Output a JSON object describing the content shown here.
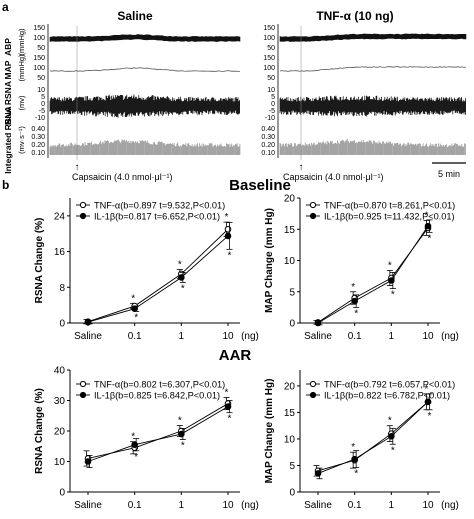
{
  "panel_labels": {
    "a": "a",
    "b": "b"
  },
  "traces": {
    "left_title": "Saline",
    "right_title": "TNF-α (10 ng)",
    "row_labels": [
      "ABP",
      "MAP",
      "Raw RSNA",
      "Integrated RSNA"
    ],
    "row_units": [
      "(mmHg)",
      "(mmHg)",
      "(mv)",
      "(mv·s⁻¹)"
    ],
    "abp_ticks": [
      "150",
      "100",
      "50"
    ],
    "map_ticks": [
      "150",
      "100",
      "50"
    ],
    "raw_ticks": [
      "10",
      "5",
      "0",
      "-5",
      "-10"
    ],
    "int_ticks": [
      "0.40",
      "0.30",
      "0.20",
      "0.10"
    ],
    "event_marker": "↑",
    "event_label": "Capsaicin (4.0 nmol·μl⁻¹)",
    "scale_bar": "5 min"
  },
  "section_titles": {
    "baseline": "Baseline",
    "aar": "AAR"
  },
  "chart_data": [
    {
      "type": "line",
      "group": "Baseline",
      "categories": [
        "Saline",
        "0.1",
        "1",
        "10"
      ],
      "xunit": "(ng)",
      "ylabel": "RSNA Change (%)",
      "yticks": [
        "0",
        "8",
        "16",
        "24"
      ],
      "ylim": [
        0,
        28
      ],
      "series": [
        {
          "name": "TNF-α(b=0.897 t=9.532,P<0.01)",
          "marker": "open",
          "values": [
            0.3,
            3.8,
            11.0,
            21.0
          ],
          "errors": [
            0.5,
            0.6,
            1.0,
            1.6
          ],
          "stars": [
            false,
            true,
            true,
            true
          ]
        },
        {
          "name": "IL-1β(b=0.817 t=6.652,P<0.01)",
          "marker": "filled",
          "values": [
            0.2,
            3.2,
            10.2,
            19.5
          ],
          "errors": [
            0.4,
            0.6,
            1.1,
            3.0
          ],
          "stars": [
            false,
            true,
            true,
            true
          ]
        }
      ]
    },
    {
      "type": "line",
      "group": "Baseline",
      "categories": [
        "Saline",
        "0.1",
        "1",
        "10"
      ],
      "xunit": "(ng)",
      "ylabel": "MAP Change (mm Hg)",
      "yticks": [
        "0",
        "5",
        "10",
        "15",
        "20"
      ],
      "ylim": [
        0,
        20
      ],
      "series": [
        {
          "name": "TNF-α(b=0.870 t=8.261,P<0.01)",
          "marker": "open",
          "values": [
            0.1,
            4.0,
            7.2,
            15.2
          ],
          "errors": [
            0.3,
            1.0,
            1.2,
            1.2
          ],
          "stars": [
            false,
            true,
            true,
            true
          ]
        },
        {
          "name": "IL-1β(b=0.925 t=11.432,P<0.01)",
          "marker": "filled",
          "values": [
            0.0,
            3.5,
            6.8,
            15.5
          ],
          "errors": [
            0.3,
            1.0,
            1.3,
            1.0
          ],
          "stars": [
            false,
            true,
            true,
            true
          ]
        }
      ]
    },
    {
      "type": "line",
      "group": "AAR",
      "categories": [
        "Saline",
        "0.1",
        "1",
        "10"
      ],
      "xunit": "(ng)",
      "ylabel": "RSNA Change (%)",
      "yticks": [
        "0",
        "10",
        "20",
        "30",
        "40"
      ],
      "ylim": [
        0,
        40
      ],
      "series": [
        {
          "name": "TNF-α(b=0.802 t=6.307,P<0.01)",
          "marker": "open",
          "values": [
            11.0,
            14.5,
            20.0,
            29.0
          ],
          "errors": [
            2.5,
            2.0,
            1.8,
            2.0
          ],
          "stars": [
            false,
            true,
            true,
            true
          ]
        },
        {
          "name": "IL-1β(b=0.825 t=6.842,P<0.01)",
          "marker": "filled",
          "values": [
            10.0,
            15.5,
            19.0,
            28.0
          ],
          "errors": [
            2.0,
            2.0,
            1.8,
            2.0
          ],
          "stars": [
            false,
            true,
            true,
            true
          ]
        }
      ]
    },
    {
      "type": "line",
      "group": "AAR",
      "categories": [
        "Saline",
        "0.1",
        "1",
        "10"
      ],
      "xunit": "(ng)",
      "ylabel": "MAP Change (mm Hg)",
      "yticks": [
        "0",
        "5",
        "10",
        "15",
        "20"
      ],
      "ylim": [
        0,
        23
      ],
      "series": [
        {
          "name": "TNF-α(b=0.792 t=6.057,P<0.01)",
          "marker": "open",
          "values": [
            4.0,
            6.0,
            11.0,
            17.0
          ],
          "errors": [
            1.0,
            1.5,
            1.5,
            1.5
          ],
          "stars": [
            false,
            true,
            true,
            true
          ]
        },
        {
          "name": "IL-1β(b=0.822 t=6.782,P<0.01)",
          "marker": "filled",
          "values": [
            3.5,
            6.2,
            10.5,
            17.0
          ],
          "errors": [
            1.0,
            1.6,
            1.5,
            1.5
          ],
          "stars": [
            false,
            true,
            true,
            true
          ]
        }
      ]
    }
  ]
}
